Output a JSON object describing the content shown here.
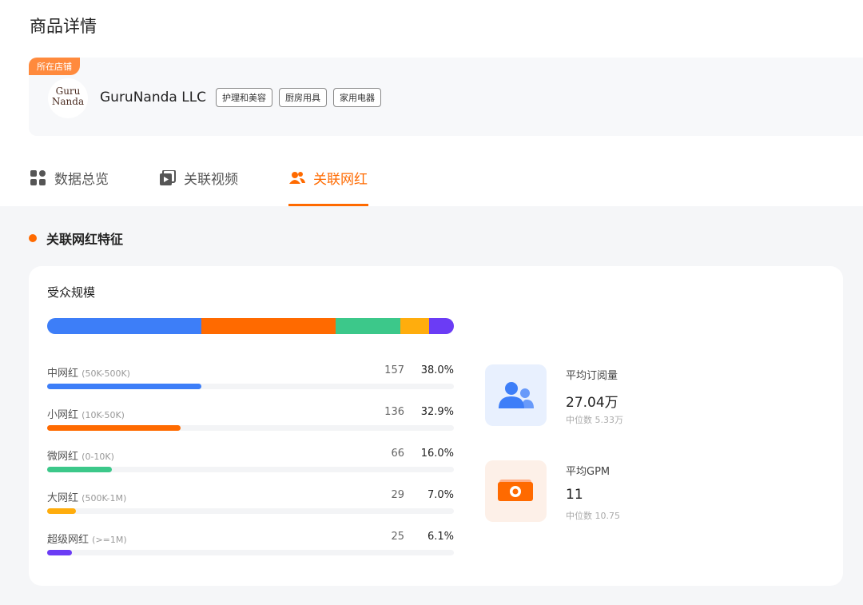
{
  "header": {
    "title": "商品详情"
  },
  "store": {
    "badge": "所在店铺",
    "logo_lines": [
      "Guru",
      "Nanda"
    ],
    "name": "GuruNanda LLC",
    "tags": [
      "护理和美容",
      "厨房用具",
      "家用电器"
    ]
  },
  "tabs": [
    "数据总览",
    "关联视频",
    "关联网红"
  ],
  "active_tab": 2,
  "section": {
    "title": "关联网红特征"
  },
  "audience": {
    "title": "受众规模",
    "rows": [
      {
        "label": "中网红",
        "range": "(50K-500K)",
        "count": 157,
        "percent": 38.0,
        "percent_label": "38.0%",
        "color": "#3d7ef8"
      },
      {
        "label": "小网红",
        "range": "(10K-50K)",
        "count": 136,
        "percent": 32.9,
        "percent_label": "32.9%",
        "color": "#ff6a00"
      },
      {
        "label": "微网红",
        "range": "(0-10K)",
        "count": 66,
        "percent": 16.0,
        "percent_label": "16.0%",
        "color": "#3cc88a"
      },
      {
        "label": "大网红",
        "range": "(500K-1M)",
        "count": 29,
        "percent": 7.0,
        "percent_label": "7.0%",
        "color": "#ffad0d"
      },
      {
        "label": "超级网红",
        "range": "(>=1M)",
        "count": 25,
        "percent": 6.1,
        "percent_label": "6.1%",
        "color": "#6b3cf5"
      }
    ]
  },
  "stats": [
    {
      "label": "平均订阅量",
      "value": "27.04万",
      "median": "中位数 5.33万"
    },
    {
      "label": "平均GPM",
      "value": 11,
      "median": "中位数 10.75"
    }
  ]
}
